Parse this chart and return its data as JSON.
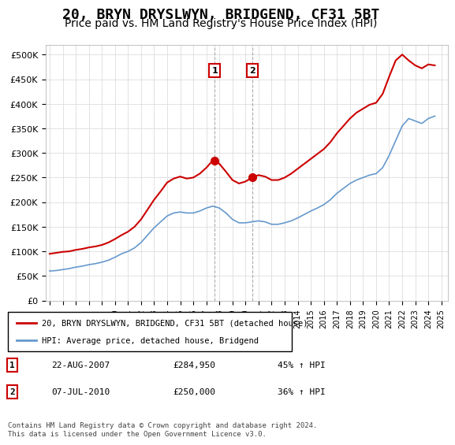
{
  "title": "20, BRYN DRYSLWYN, BRIDGEND, CF31 5BT",
  "subtitle": "Price paid vs. HM Land Registry's House Price Index (HPI)",
  "title_fontsize": 13,
  "subtitle_fontsize": 10,
  "ylabel_values": [
    0,
    50000,
    100000,
    150000,
    200000,
    250000,
    300000,
    350000,
    400000,
    450000,
    500000
  ],
  "ylim": [
    0,
    520000
  ],
  "xlim_start": 1995.0,
  "xlim_end": 2025.5,
  "hpi_color": "#6699cc",
  "price_color": "#cc0000",
  "legend_label_price": "20, BRYN DRYSLWYN, BRIDGEND, CF31 5BT (detached house)",
  "legend_label_hpi": "HPI: Average price, detached house, Bridgend",
  "transaction1_label": "1",
  "transaction1_date": "22-AUG-2007",
  "transaction1_price": "£284,950",
  "transaction1_hpi": "45% ↑ HPI",
  "transaction1_year": 2007.64,
  "transaction2_label": "2",
  "transaction2_date": "07-JUL-2010",
  "transaction2_price": "£250,000",
  "transaction2_hpi": "36% ↑ HPI",
  "transaction2_year": 2010.52,
  "footnote": "Contains HM Land Registry data © Crown copyright and database right 2024.\nThis data is licensed under the Open Government Licence v3.0.",
  "hpi_x": [
    1995.0,
    1995.5,
    1996.0,
    1996.5,
    1997.0,
    1997.5,
    1998.0,
    1998.5,
    1999.0,
    1999.5,
    2000.0,
    2000.5,
    2001.0,
    2001.5,
    2002.0,
    2002.5,
    2003.0,
    2003.5,
    2004.0,
    2004.5,
    2005.0,
    2005.5,
    2006.0,
    2006.5,
    2007.0,
    2007.5,
    2008.0,
    2008.5,
    2009.0,
    2009.5,
    2010.0,
    2010.5,
    2011.0,
    2011.5,
    2012.0,
    2012.5,
    2013.0,
    2013.5,
    2014.0,
    2014.5,
    2015.0,
    2015.5,
    2016.0,
    2016.5,
    2017.0,
    2017.5,
    2018.0,
    2018.5,
    2019.0,
    2019.5,
    2020.0,
    2020.5,
    2021.0,
    2021.5,
    2022.0,
    2022.5,
    2023.0,
    2023.5,
    2024.0,
    2024.5
  ],
  "hpi_y": [
    60000,
    61000,
    63000,
    65000,
    68000,
    70000,
    73000,
    75000,
    78000,
    82000,
    88000,
    95000,
    100000,
    107000,
    118000,
    133000,
    148000,
    160000,
    172000,
    178000,
    180000,
    178000,
    178000,
    182000,
    188000,
    192000,
    188000,
    178000,
    165000,
    158000,
    158000,
    160000,
    162000,
    160000,
    155000,
    155000,
    158000,
    162000,
    168000,
    175000,
    182000,
    188000,
    195000,
    205000,
    218000,
    228000,
    238000,
    245000,
    250000,
    255000,
    258000,
    270000,
    295000,
    325000,
    355000,
    370000,
    365000,
    360000,
    370000,
    375000
  ],
  "price_x": [
    1995.0,
    1995.5,
    1996.0,
    1996.5,
    1997.0,
    1997.5,
    1998.0,
    1998.5,
    1999.0,
    1999.5,
    2000.0,
    2000.5,
    2001.0,
    2001.5,
    2002.0,
    2002.5,
    2003.0,
    2003.5,
    2004.0,
    2004.5,
    2005.0,
    2005.5,
    2006.0,
    2006.5,
    2007.0,
    2007.5,
    2008.0,
    2008.5,
    2009.0,
    2009.5,
    2010.0,
    2010.5,
    2011.0,
    2011.5,
    2012.0,
    2012.5,
    2013.0,
    2013.5,
    2014.0,
    2014.5,
    2015.0,
    2015.5,
    2016.0,
    2016.5,
    2017.0,
    2017.5,
    2018.0,
    2018.5,
    2019.0,
    2019.5,
    2020.0,
    2020.5,
    2021.0,
    2021.5,
    2022.0,
    2022.5,
    2023.0,
    2023.5,
    2024.0,
    2024.5
  ],
  "price_y": [
    95000,
    97000,
    99000,
    100000,
    103000,
    105000,
    108000,
    110000,
    113000,
    118000,
    125000,
    133000,
    140000,
    150000,
    165000,
    185000,
    205000,
    222000,
    240000,
    248000,
    252000,
    248000,
    250000,
    258000,
    270000,
    284950,
    278000,
    262000,
    245000,
    238000,
    242000,
    250000,
    255000,
    252000,
    245000,
    245000,
    250000,
    258000,
    268000,
    278000,
    288000,
    298000,
    308000,
    322000,
    340000,
    355000,
    370000,
    382000,
    390000,
    398000,
    402000,
    420000,
    455000,
    488000,
    500000,
    488000,
    478000,
    472000,
    480000,
    478000
  ]
}
